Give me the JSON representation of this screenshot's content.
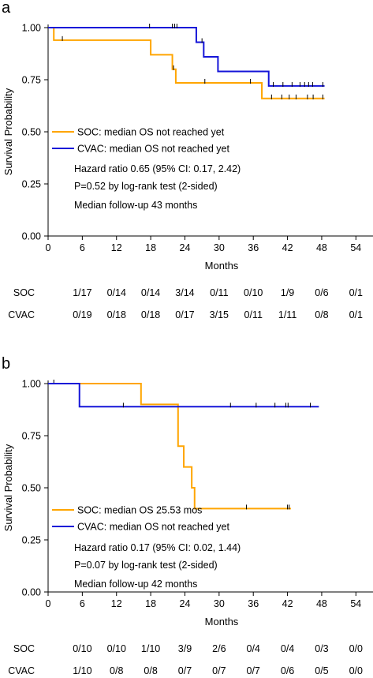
{
  "chart_data": [
    {
      "type": "line",
      "panel_label": "a",
      "xlabel": "Months",
      "ylabel": "Survival Probability",
      "xlim": [
        0,
        57
      ],
      "ylim": [
        0,
        1.0
      ],
      "xticks": [
        0,
        6,
        12,
        18,
        24,
        30,
        36,
        42,
        48,
        54
      ],
      "yticks": [
        "0.00",
        "0.25",
        "0.50",
        "0.75",
        "1.00"
      ],
      "series": [
        {
          "name": "SOC: median OS not reached yet",
          "color": "#ffa500",
          "steps": [
            [
              0,
              1.0
            ],
            [
              1.0,
              0.94
            ],
            [
              18.0,
              0.87
            ],
            [
              21.8,
              0.8
            ],
            [
              22.4,
              0.735
            ],
            [
              37.5,
              0.66
            ],
            [
              48.5,
              0.66
            ]
          ],
          "censors": [
            [
              2.5,
              0.94
            ],
            [
              22.0,
              0.8
            ],
            [
              27.5,
              0.735
            ],
            [
              35.5,
              0.735
            ],
            [
              39.2,
              0.66
            ],
            [
              41.0,
              0.66
            ],
            [
              42.3,
              0.66
            ],
            [
              43.5,
              0.66
            ],
            [
              45.5,
              0.66
            ],
            [
              46.5,
              0.66
            ],
            [
              48.2,
              0.66
            ]
          ]
        },
        {
          "name": "CVAC: median OS not reached yet",
          "color": "#1515d8",
          "steps": [
            [
              0,
              1.0
            ],
            [
              26.0,
              0.93
            ],
            [
              27.3,
              0.86
            ],
            [
              29.8,
              0.79
            ],
            [
              38.7,
              0.72
            ],
            [
              48.5,
              0.72
            ]
          ],
          "censors": [
            [
              17.8,
              1.0
            ],
            [
              21.8,
              1.0
            ],
            [
              22.2,
              1.0
            ],
            [
              22.6,
              1.0
            ],
            [
              27.0,
              0.93
            ],
            [
              39.5,
              0.72
            ],
            [
              41.2,
              0.72
            ],
            [
              42.8,
              0.72
            ],
            [
              44.2,
              0.72
            ],
            [
              45.0,
              0.72
            ],
            [
              45.7,
              0.72
            ],
            [
              46.4,
              0.72
            ],
            [
              48.2,
              0.72
            ]
          ]
        }
      ],
      "annotations": [
        "Hazard ratio 0.65 (95% CI: 0.17, 2.42)",
        "P=0.52 by log-rank test (2-sided)",
        "Median follow-up 43 months"
      ],
      "risk_table": [
        {
          "label": "SOC",
          "values": [
            "1/17",
            "0/14",
            "0/14",
            "3/14",
            "0/11",
            "0/10",
            "1/9",
            "0/6",
            "0/1"
          ]
        },
        {
          "label": "CVAC",
          "values": [
            "0/19",
            "0/18",
            "0/18",
            "0/17",
            "3/15",
            "0/11",
            "1/11",
            "0/8",
            "0/1"
          ]
        }
      ],
      "risk_table_x": [
        6,
        12,
        18,
        24,
        30,
        36,
        42,
        48,
        54
      ],
      "grid": false,
      "legend_position": "lower-left"
    },
    {
      "type": "line",
      "panel_label": "b",
      "xlabel": "Months",
      "ylabel": "Survival Probability",
      "xlim": [
        0,
        57
      ],
      "ylim": [
        0,
        1.0
      ],
      "xticks": [
        0,
        6,
        12,
        18,
        24,
        30,
        36,
        42,
        48,
        54
      ],
      "yticks": [
        "0.00",
        "0.25",
        "0.50",
        "0.75",
        "1.00"
      ],
      "series": [
        {
          "name": "SOC: median OS 25.53 mos",
          "color": "#ffa500",
          "steps": [
            [
              0,
              1.0
            ],
            [
              16.3,
              0.9
            ],
            [
              22.8,
              0.7
            ],
            [
              23.8,
              0.6
            ],
            [
              25.2,
              0.5
            ],
            [
              25.7,
              0.4
            ],
            [
              42.6,
              0.4
            ]
          ],
          "censors": [
            [
              1.0,
              1.0
            ],
            [
              34.8,
              0.4
            ],
            [
              42.0,
              0.4
            ],
            [
              42.3,
              0.4
            ]
          ]
        },
        {
          "name": "CVAC: median OS not reached yet",
          "color": "#1515d8",
          "steps": [
            [
              0,
              1.0
            ],
            [
              5.5,
              0.889
            ],
            [
              47.5,
              0.889
            ]
          ],
          "censors": [
            [
              13.2,
              0.889
            ],
            [
              32.0,
              0.889
            ],
            [
              36.5,
              0.889
            ],
            [
              39.8,
              0.889
            ],
            [
              41.7,
              0.889
            ],
            [
              42.1,
              0.889
            ],
            [
              46.0,
              0.889
            ]
          ]
        }
      ],
      "annotations": [
        "Hazard ratio 0.17 (95% CI: 0.02, 1.44)",
        "P=0.07 by log-rank test (2-sided)",
        "Median follow-up 42 months"
      ],
      "risk_table": [
        {
          "label": "SOC",
          "values": [
            "0/10",
            "0/10",
            "1/10",
            "3/9",
            "2/6",
            "0/4",
            "0/4",
            "0/3",
            "0/0"
          ]
        },
        {
          "label": "CVAC",
          "values": [
            "1/10",
            "0/8",
            "0/8",
            "0/7",
            "0/7",
            "0/7",
            "0/6",
            "0/5",
            "0/0"
          ]
        }
      ],
      "risk_table_x": [
        6,
        12,
        18,
        24,
        30,
        36,
        42,
        48,
        54
      ],
      "grid": false,
      "legend_position": "lower-left"
    }
  ]
}
